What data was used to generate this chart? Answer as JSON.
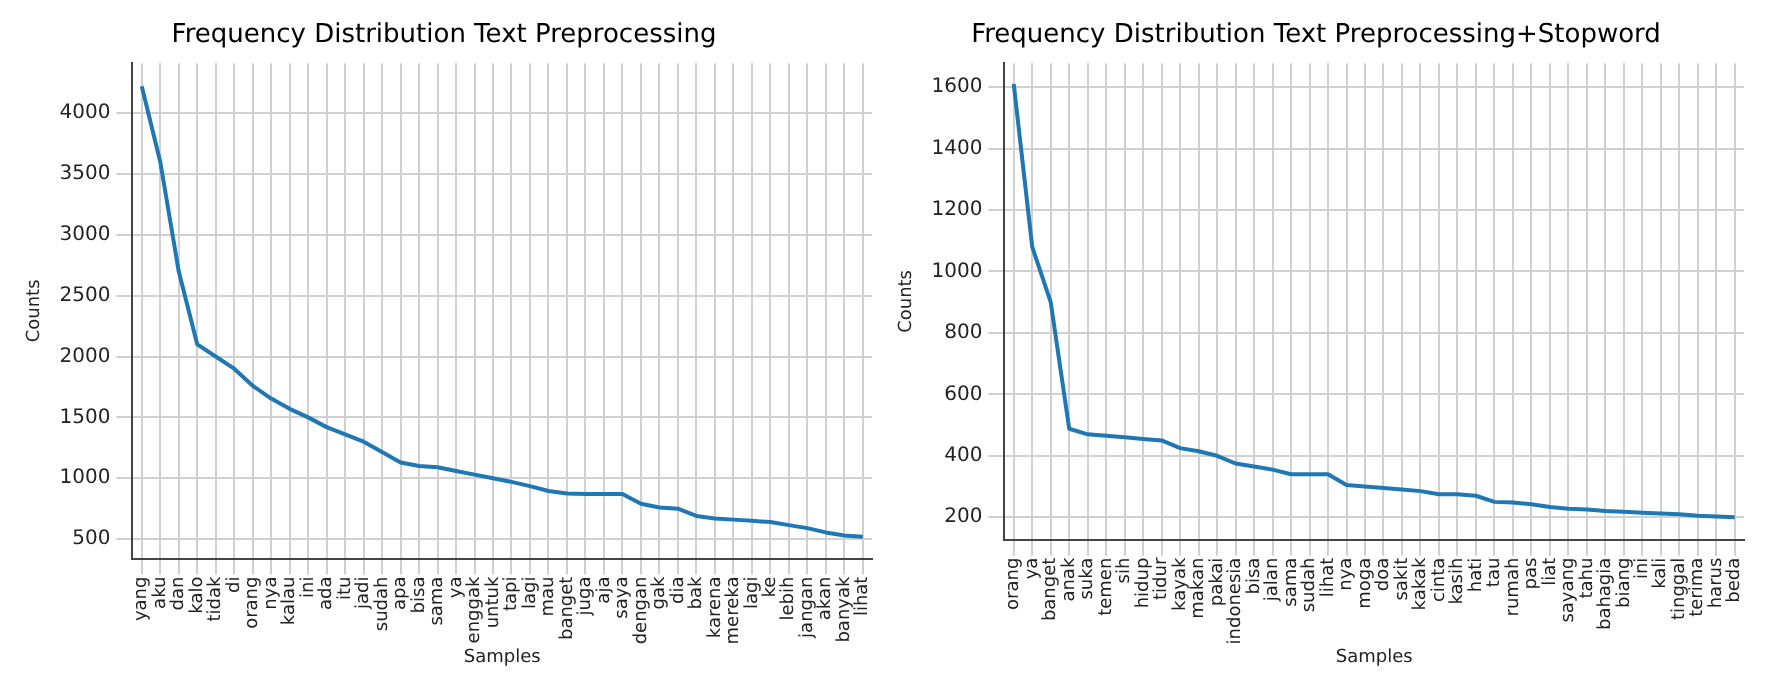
{
  "chart_data": [
    {
      "type": "line",
      "title": "Frequency Distribution Text Preprocessing",
      "xlabel": "Samples",
      "ylabel": "Counts",
      "categories": [
        "yang",
        "aku",
        "dan",
        "kalo",
        "tidak",
        "di",
        "orang",
        "nya",
        "kalau",
        "ini",
        "ada",
        "itu",
        "jadi",
        "sudah",
        "apa",
        "bisa",
        "sama",
        "ya",
        "enggak",
        "untuk",
        "tapi",
        "lagi",
        "mau",
        "banget",
        "juga",
        "aja",
        "saya",
        "dengan",
        "gak",
        "dia",
        "bak",
        "karena",
        "mereka",
        "lagi",
        "ke",
        "lebih",
        "jangan",
        "akan",
        "banyak",
        "lihat"
      ],
      "series": [
        {
          "color": "#1f77b4",
          "values": [
            4220,
            3600,
            2700,
            2100,
            2000,
            1900,
            1760,
            1655,
            1570,
            1500,
            1420,
            1360,
            1300,
            1215,
            1130,
            1100,
            1090,
            1060,
            1030,
            1000,
            970,
            935,
            895,
            875,
            870,
            870,
            870,
            790,
            760,
            750,
            690,
            670,
            660,
            650,
            640,
            615,
            590,
            555,
            530,
            520
          ]
        }
      ],
      "ylim": [
        340,
        4410
      ],
      "yticks": [
        500,
        1000,
        1500,
        2000,
        2500,
        3000,
        3500,
        4000
      ],
      "grid": true,
      "legend": false,
      "marker": "none"
    },
    {
      "type": "line",
      "title": "Frequency Distribution Text Preprocessing+Stopword",
      "xlabel": "Samples",
      "ylabel": "Counts",
      "categories": [
        "orang",
        "ya",
        "banget",
        "anak",
        "suka",
        "temen",
        "sih",
        "hidup",
        "tidur",
        "kayak",
        "makan",
        "pakai",
        "indonesia",
        "bisa",
        "jalan",
        "sama",
        "sudah",
        "lihat",
        "nya",
        "moga",
        "doa",
        "sakit",
        "kakak",
        "cinta",
        "kasih",
        "hati",
        "tau",
        "rumah",
        "pas",
        "liat",
        "sayang",
        "tahu",
        "bahagia",
        "biang",
        "ini",
        "kali",
        "tinggal",
        "terima",
        "harus",
        "beda"
      ],
      "series": [
        {
          "color": "#1f77b4",
          "values": [
            1610,
            1080,
            900,
            488,
            470,
            465,
            460,
            455,
            450,
            425,
            415,
            400,
            375,
            365,
            355,
            340,
            340,
            340,
            305,
            300,
            295,
            290,
            285,
            275,
            275,
            270,
            250,
            248,
            242,
            233,
            228,
            225,
            220,
            218,
            215,
            212,
            210,
            205,
            202,
            200
          ]
        }
      ],
      "ylim": [
        127,
        1678
      ],
      "yticks": [
        200,
        400,
        600,
        800,
        1000,
        1200,
        1400,
        1600
      ],
      "grid": true,
      "legend": false,
      "marker": "none"
    }
  ]
}
